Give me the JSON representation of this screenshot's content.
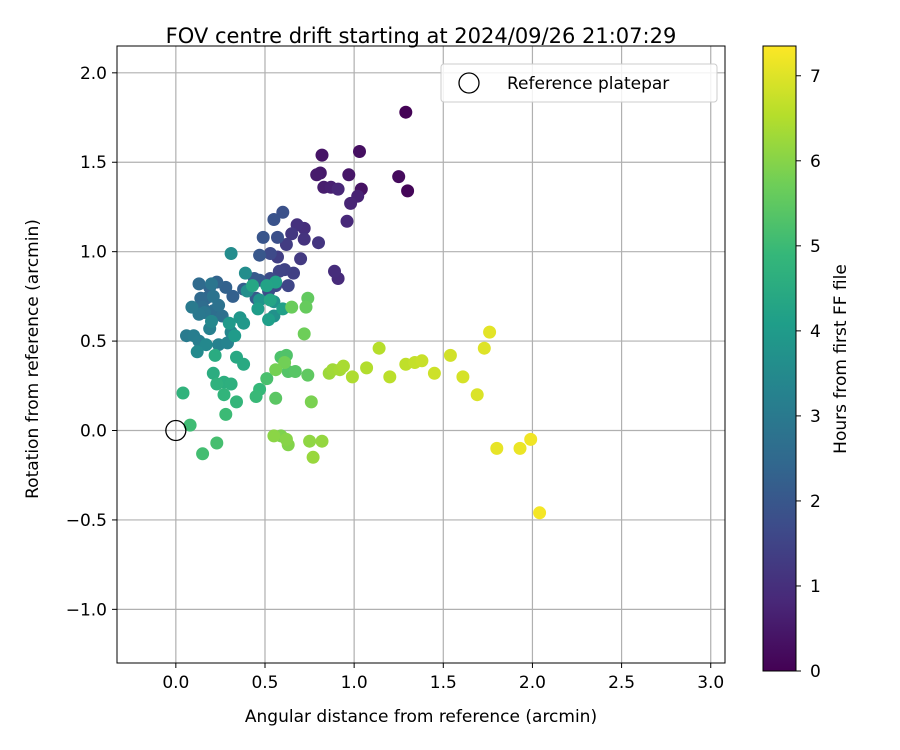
{
  "chart_data": {
    "type": "scatter",
    "title": "FOV centre drift starting at 2024/09/26 21:07:29",
    "xlabel": "Angular distance from reference (arcmin)",
    "ylabel": "Rotation from reference (arcmin)",
    "xlim": [
      -0.33,
      3.08
    ],
    "ylim": [
      -1.3,
      2.15
    ],
    "xticks": [
      "0.0",
      "0.5",
      "1.0",
      "1.5",
      "2.0",
      "2.5",
      "3.0"
    ],
    "xtick_values": [
      0,
      0.5,
      1.0,
      1.5,
      2.0,
      2.5,
      3.0
    ],
    "yticks": [
      "−1.0",
      "−0.5",
      "0.0",
      "0.5",
      "1.0",
      "1.5",
      "2.0"
    ],
    "ytick_values": [
      -1.0,
      -0.5,
      0,
      0.5,
      1.0,
      1.5,
      2.0
    ],
    "grid": true,
    "colormap": "viridis",
    "colorbar": {
      "label": "Hours from first FF file",
      "range": [
        0,
        7.35
      ],
      "ticks": [
        "0",
        "1",
        "2",
        "3",
        "4",
        "5",
        "6",
        "7"
      ],
      "tick_values": [
        0,
        1,
        2,
        3,
        4,
        5,
        6,
        7
      ]
    },
    "legend": {
      "label": "Reference platepar",
      "placement": "top-right"
    },
    "reference_point": {
      "x": 0.0,
      "y": 0.0
    },
    "series": [
      {
        "points": [
          [
            1.29,
            1.78,
            0.05
          ],
          [
            1.3,
            1.34,
            0.1
          ],
          [
            1.25,
            1.42,
            0.2
          ],
          [
            1.03,
            1.56,
            0.3
          ],
          [
            1.04,
            1.35,
            0.35
          ],
          [
            0.82,
            1.54,
            0.4
          ],
          [
            0.97,
            1.43,
            0.45
          ],
          [
            0.81,
            1.44,
            0.5
          ],
          [
            0.79,
            1.43,
            0.55
          ],
          [
            0.83,
            1.36,
            0.6
          ],
          [
            0.87,
            1.36,
            0.65
          ],
          [
            1.02,
            1.31,
            0.7
          ],
          [
            0.98,
            1.27,
            0.75
          ],
          [
            0.91,
            1.35,
            0.8
          ],
          [
            0.96,
            1.17,
            0.85
          ],
          [
            0.91,
            0.85,
            0.9
          ],
          [
            0.89,
            0.89,
            0.95
          ],
          [
            0.72,
            1.13,
            1.0
          ],
          [
            0.68,
            1.15,
            1.05
          ],
          [
            0.72,
            1.07,
            1.1
          ],
          [
            0.8,
            1.05,
            1.15
          ],
          [
            0.65,
            1.1,
            1.2
          ],
          [
            0.7,
            0.96,
            1.25
          ],
          [
            0.62,
            1.04,
            1.3
          ],
          [
            0.57,
            0.97,
            1.35
          ],
          [
            0.66,
            0.88,
            1.4
          ],
          [
            0.61,
            0.9,
            1.45
          ],
          [
            0.58,
            0.89,
            1.5
          ],
          [
            0.63,
            0.81,
            1.55
          ],
          [
            0.56,
            0.81,
            1.6
          ],
          [
            0.53,
            0.99,
            1.65
          ],
          [
            0.53,
            0.85,
            1.7
          ],
          [
            0.52,
            0.78,
            1.75
          ],
          [
            0.57,
            1.08,
            1.8
          ],
          [
            0.6,
            1.22,
            1.85
          ],
          [
            0.55,
            1.18,
            1.9
          ],
          [
            0.49,
            1.08,
            1.95
          ],
          [
            0.47,
            0.98,
            2.0
          ],
          [
            0.47,
            0.84,
            2.05
          ],
          [
            0.44,
            0.85,
            2.1
          ],
          [
            0.45,
            0.74,
            2.15
          ],
          [
            0.38,
            0.79,
            2.2
          ],
          [
            0.32,
            0.75,
            2.25
          ],
          [
            0.28,
            0.8,
            2.3
          ],
          [
            0.23,
            0.83,
            2.35
          ],
          [
            0.19,
            0.8,
            2.4
          ],
          [
            0.17,
            0.74,
            2.45
          ],
          [
            0.14,
            0.74,
            2.5
          ],
          [
            0.13,
            0.82,
            2.55
          ],
          [
            0.15,
            0.69,
            2.6
          ],
          [
            0.21,
            0.67,
            2.65
          ],
          [
            0.26,
            0.64,
            2.7
          ],
          [
            0.24,
            0.7,
            2.75
          ],
          [
            0.21,
            0.75,
            2.8
          ],
          [
            0.2,
            0.82,
            2.85
          ],
          [
            0.16,
            0.66,
            2.9
          ],
          [
            0.13,
            0.65,
            2.95
          ],
          [
            0.09,
            0.69,
            3.0
          ],
          [
            0.06,
            0.53,
            3.05
          ],
          [
            0.1,
            0.53,
            3.1
          ],
          [
            0.13,
            0.5,
            3.15
          ],
          [
            0.19,
            0.57,
            3.2
          ],
          [
            0.24,
            0.48,
            3.25
          ],
          [
            0.29,
            0.49,
            3.3
          ],
          [
            0.31,
            0.55,
            3.35
          ],
          [
            0.2,
            0.61,
            3.4
          ],
          [
            0.17,
            0.48,
            3.45
          ],
          [
            0.12,
            0.44,
            3.5
          ],
          [
            0.31,
            0.99,
            3.55
          ],
          [
            0.39,
            0.88,
            3.6
          ],
          [
            0.4,
            0.78,
            3.65
          ],
          [
            0.55,
            0.64,
            3.7
          ],
          [
            0.55,
            0.72,
            3.75
          ],
          [
            0.47,
            0.73,
            3.8
          ],
          [
            0.36,
            0.63,
            3.85
          ],
          [
            0.38,
            0.6,
            3.9
          ],
          [
            0.3,
            0.6,
            3.95
          ],
          [
            0.33,
            0.53,
            4.0
          ],
          [
            0.46,
            0.68,
            4.05
          ],
          [
            0.52,
            0.62,
            4.1
          ],
          [
            0.6,
            0.68,
            4.15
          ],
          [
            0.56,
            0.83,
            4.2
          ],
          [
            0.51,
            0.81,
            4.25
          ],
          [
            0.53,
            0.73,
            4.3
          ],
          [
            0.43,
            0.81,
            4.35
          ],
          [
            0.34,
            0.41,
            4.4
          ],
          [
            0.38,
            0.37,
            4.45
          ],
          [
            0.22,
            0.42,
            4.5
          ],
          [
            0.21,
            0.32,
            4.55
          ],
          [
            0.27,
            0.27,
            4.6
          ],
          [
            0.31,
            0.26,
            4.65
          ],
          [
            0.23,
            0.26,
            4.7
          ],
          [
            0.04,
            0.21,
            4.75
          ],
          [
            0.27,
            0.2,
            4.8
          ],
          [
            0.34,
            0.16,
            4.85
          ],
          [
            0.47,
            0.23,
            4.9
          ],
          [
            0.45,
            0.19,
            4.95
          ],
          [
            0.28,
            0.09,
            5.0
          ],
          [
            0.08,
            0.03,
            5.05
          ],
          [
            0.15,
            -0.13,
            5.1
          ],
          [
            0.23,
            -0.07,
            5.15
          ],
          [
            0.51,
            0.29,
            5.2
          ],
          [
            0.59,
            0.41,
            5.25
          ],
          [
            0.62,
            0.42,
            5.3
          ],
          [
            0.63,
            0.33,
            5.35
          ],
          [
            0.67,
            0.33,
            5.4
          ],
          [
            0.56,
            0.18,
            5.45
          ],
          [
            0.74,
            0.31,
            5.5
          ],
          [
            0.74,
            0.74,
            5.55
          ],
          [
            0.73,
            0.69,
            5.6
          ],
          [
            0.65,
            0.69,
            5.65
          ],
          [
            0.72,
            0.54,
            5.7
          ],
          [
            0.61,
            0.38,
            5.75
          ],
          [
            0.56,
            0.34,
            5.8
          ],
          [
            0.76,
            0.16,
            5.85
          ],
          [
            0.59,
            -0.03,
            5.9
          ],
          [
            0.63,
            -0.08,
            5.95
          ],
          [
            0.62,
            -0.05,
            6.0
          ],
          [
            0.55,
            -0.03,
            6.05
          ],
          [
            0.75,
            -0.06,
            6.1
          ],
          [
            0.82,
            -0.06,
            6.15
          ],
          [
            0.77,
            -0.15,
            6.2
          ],
          [
            0.86,
            0.32,
            6.25
          ],
          [
            0.88,
            0.34,
            6.3
          ],
          [
            0.92,
            0.34,
            6.35
          ],
          [
            0.94,
            0.36,
            6.4
          ],
          [
            0.99,
            0.3,
            6.45
          ],
          [
            1.07,
            0.35,
            6.5
          ],
          [
            1.14,
            0.46,
            6.55
          ],
          [
            1.2,
            0.3,
            6.6
          ],
          [
            1.29,
            0.37,
            6.65
          ],
          [
            1.34,
            0.38,
            6.7
          ],
          [
            1.38,
            0.39,
            6.75
          ],
          [
            1.45,
            0.32,
            6.8
          ],
          [
            1.54,
            0.42,
            6.85
          ],
          [
            1.61,
            0.3,
            6.9
          ],
          [
            1.69,
            0.2,
            6.95
          ],
          [
            1.73,
            0.46,
            7.0
          ],
          [
            1.76,
            0.55,
            7.05
          ],
          [
            1.8,
            -0.1,
            7.1
          ],
          [
            1.93,
            -0.1,
            7.15
          ],
          [
            1.99,
            -0.05,
            7.2
          ],
          [
            2.04,
            -0.46,
            7.25
          ]
        ]
      }
    ]
  }
}
